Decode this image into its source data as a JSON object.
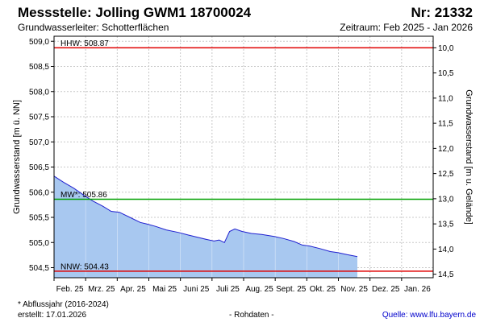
{
  "header": {
    "title": "Messstelle: Jolling GWM1 18700024",
    "number": "Nr: 21332",
    "aquifer": "Grundwasserleiter:   Schotterflächen",
    "period": "Zeitraum: Feb 2025 - Jan 2026"
  },
  "footer": {
    "footnote": "* Abflussjahr (2016-2024)",
    "created": "erstellt:  17.01.2026",
    "rawdata": "- Rohdaten -",
    "source": "Quelle:  www.lfu.bayern.de"
  },
  "colors": {
    "fill": "#a8c8f0",
    "line": "#2020d0",
    "hhw": "#e00000",
    "mw": "#00a000",
    "nnw": "#e00000",
    "grid": "#c8c8c8"
  },
  "chart_data": {
    "type": "area",
    "ylabel": "Grundwasserstand [m ü. NN]",
    "y2label": "Grundwasserstand [m u. Gelände]",
    "ylim": [
      504.3,
      509.1
    ],
    "y_ticks": [
      "504,5",
      "505,0",
      "505,5",
      "506,0",
      "506,5",
      "507,0",
      "507,5",
      "508,0",
      "508,5",
      "509,0"
    ],
    "y2_ticks": [
      "10,0",
      "10,5",
      "11,0",
      "11,5",
      "12,0",
      "12,5",
      "13,0",
      "13,5",
      "14,0",
      "14,5"
    ],
    "y2_surface_elevation": 518.87,
    "x_ticks": [
      "Feb. 25",
      "Mrz. 25",
      "Apr. 25",
      "Mai 25",
      "Juni 25",
      "Juli 25",
      "Aug. 25",
      "Sept. 25",
      "Okt. 25",
      "Nov. 25",
      "Dez. 25",
      "Jan. 26"
    ],
    "grid": true,
    "reference_lines": [
      {
        "label": "HHW: 508.87",
        "value": 508.87,
        "color": "#e00000"
      },
      {
        "label": "MW*: 505.86",
        "value": 505.86,
        "color": "#00a000"
      },
      {
        "label": "NNW: 504.43",
        "value": 504.43,
        "color": "#e00000"
      }
    ],
    "series": [
      {
        "x": [
          "2025-02-01",
          "2025-02-10",
          "2025-02-20",
          "2025-03-01",
          "2025-03-10",
          "2025-03-20",
          "2025-03-28",
          "2025-04-05",
          "2025-04-15",
          "2025-04-25",
          "2025-05-01",
          "2025-05-10",
          "2025-05-20",
          "2025-06-01",
          "2025-06-10",
          "2025-06-20",
          "2025-06-28",
          "2025-07-05",
          "2025-07-10",
          "2025-07-15",
          "2025-07-20",
          "2025-07-25",
          "2025-08-01",
          "2025-08-10",
          "2025-08-20",
          "2025-09-01",
          "2025-09-10",
          "2025-09-20",
          "2025-09-28",
          "2025-10-05",
          "2025-10-15",
          "2025-10-25",
          "2025-11-01",
          "2025-11-10",
          "2025-11-20"
        ],
        "values": [
          506.32,
          506.2,
          506.08,
          505.95,
          505.83,
          505.72,
          505.62,
          505.6,
          505.5,
          505.4,
          505.37,
          505.32,
          505.25,
          505.2,
          505.15,
          505.1,
          505.06,
          505.03,
          505.05,
          505.0,
          505.22,
          505.27,
          505.22,
          505.18,
          505.16,
          505.12,
          505.08,
          505.02,
          504.95,
          504.93,
          504.88,
          504.82,
          504.8,
          504.76,
          504.72
        ]
      }
    ]
  }
}
